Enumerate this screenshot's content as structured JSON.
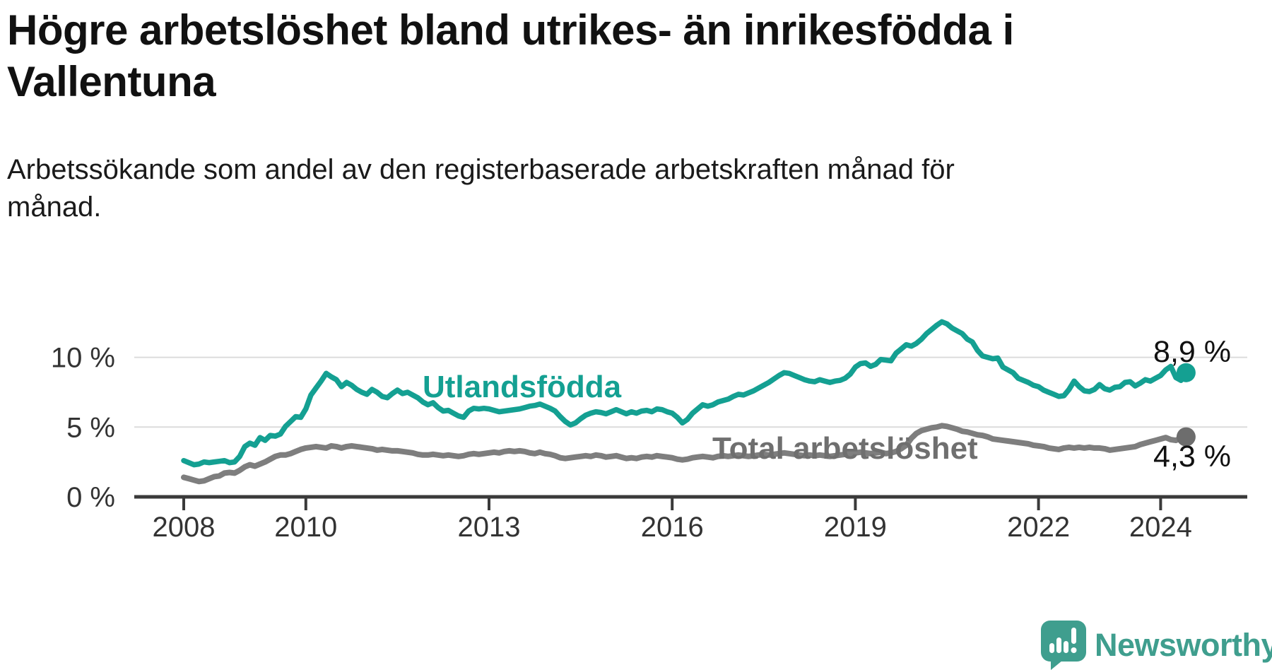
{
  "header": {
    "title_line1": "Högre arbetslöshet bland utrikes- än inrikesfödda i",
    "title_line2": "Vallentuna",
    "subtitle_line1": "Arbetssökande som andel av den registerbaserade arbetskraften månad för",
    "subtitle_line2": "månad."
  },
  "chart_data": {
    "type": "line",
    "title": "Högre arbetslöshet bland utrikes- än inrikesfödda i Vallentuna",
    "subtitle": "Arbetssökande som andel av den registerbaserade arbetskraften månad för månad.",
    "x_unit": "month",
    "x_start_year": 2008,
    "x_end": "2024-06",
    "ylim": [
      0,
      13.2
    ],
    "grid": "horizontal",
    "legend_position": "inline-labels",
    "x_ticks": [
      {
        "value": 2008,
        "label": "2008"
      },
      {
        "value": 2010,
        "label": "2010"
      },
      {
        "value": 2013,
        "label": "2013"
      },
      {
        "value": 2016,
        "label": "2016"
      },
      {
        "value": 2019,
        "label": "2019"
      },
      {
        "value": 2022,
        "label": "2022"
      },
      {
        "value": 2024,
        "label": "2024"
      }
    ],
    "y_ticks": [
      {
        "value": 0,
        "label": "0 %"
      },
      {
        "value": 5,
        "label": "5 %"
      },
      {
        "value": 10,
        "label": "10 %"
      }
    ],
    "series": [
      {
        "name": "Utlandsfödda",
        "label": "Utlandsfödda",
        "color": "#14a092",
        "end_value": 8.9,
        "end_label": "8,9 %",
        "values": [
          2.6,
          2.45,
          2.3,
          2.35,
          2.5,
          2.45,
          2.5,
          2.55,
          2.6,
          2.45,
          2.5,
          2.9,
          3.6,
          3.85,
          3.7,
          4.25,
          4.05,
          4.4,
          4.35,
          4.5,
          5.05,
          5.4,
          5.75,
          5.7,
          6.3,
          7.3,
          7.8,
          8.3,
          8.85,
          8.6,
          8.4,
          7.9,
          8.2,
          8.0,
          7.7,
          7.5,
          7.35,
          7.7,
          7.5,
          7.2,
          7.1,
          7.4,
          7.65,
          7.4,
          7.5,
          7.3,
          7.1,
          6.8,
          6.6,
          6.75,
          6.4,
          6.15,
          6.2,
          6.0,
          5.8,
          5.7,
          6.15,
          6.35,
          6.3,
          6.35,
          6.3,
          6.2,
          6.1,
          6.15,
          6.2,
          6.25,
          6.3,
          6.4,
          6.5,
          6.55,
          6.65,
          6.5,
          6.35,
          6.15,
          5.75,
          5.4,
          5.15,
          5.3,
          5.6,
          5.85,
          6.0,
          6.1,
          6.05,
          5.95,
          6.1,
          6.25,
          6.1,
          5.95,
          6.1,
          6.0,
          6.15,
          6.2,
          6.1,
          6.3,
          6.25,
          6.1,
          6.0,
          5.7,
          5.3,
          5.55,
          6.0,
          6.3,
          6.6,
          6.5,
          6.6,
          6.8,
          6.9,
          7.0,
          7.2,
          7.35,
          7.3,
          7.45,
          7.6,
          7.8,
          8.0,
          8.2,
          8.45,
          8.7,
          8.9,
          8.85,
          8.7,
          8.55,
          8.4,
          8.3,
          8.25,
          8.4,
          8.3,
          8.2,
          8.3,
          8.35,
          8.5,
          8.8,
          9.3,
          9.55,
          9.6,
          9.35,
          9.5,
          9.85,
          9.8,
          9.75,
          10.3,
          10.6,
          10.9,
          10.8,
          11.0,
          11.3,
          11.7,
          12.0,
          12.3,
          12.55,
          12.4,
          12.1,
          11.9,
          11.7,
          11.3,
          11.1,
          10.5,
          10.1,
          10.0,
          9.9,
          9.95,
          9.3,
          9.1,
          8.9,
          8.5,
          8.35,
          8.2,
          8.0,
          7.9,
          7.65,
          7.5,
          7.35,
          7.2,
          7.25,
          7.7,
          8.3,
          7.9,
          7.6,
          7.55,
          7.7,
          8.05,
          7.75,
          7.65,
          7.85,
          7.9,
          8.2,
          8.25,
          7.95,
          8.15,
          8.4,
          8.3,
          8.5,
          8.7,
          9.1,
          9.35,
          8.55,
          8.35,
          8.9
        ]
      },
      {
        "name": "Total arbetslöshet",
        "label": "Total arbetslöshet",
        "color": "#7e7e7e",
        "end_value": 4.3,
        "end_label": "4,3 %",
        "values": [
          1.4,
          1.3,
          1.2,
          1.1,
          1.15,
          1.3,
          1.45,
          1.5,
          1.7,
          1.75,
          1.7,
          1.9,
          2.15,
          2.3,
          2.2,
          2.35,
          2.5,
          2.7,
          2.9,
          3.0,
          3.0,
          3.1,
          3.25,
          3.4,
          3.5,
          3.55,
          3.6,
          3.55,
          3.5,
          3.65,
          3.6,
          3.5,
          3.6,
          3.65,
          3.6,
          3.55,
          3.5,
          3.45,
          3.35,
          3.4,
          3.35,
          3.3,
          3.3,
          3.25,
          3.2,
          3.15,
          3.05,
          3.0,
          3.0,
          3.05,
          3.0,
          2.95,
          3.0,
          2.95,
          2.9,
          2.95,
          3.05,
          3.1,
          3.05,
          3.1,
          3.15,
          3.2,
          3.15,
          3.25,
          3.3,
          3.25,
          3.3,
          3.25,
          3.15,
          3.1,
          3.2,
          3.1,
          3.05,
          2.95,
          2.8,
          2.75,
          2.8,
          2.85,
          2.9,
          2.95,
          2.9,
          3.0,
          2.95,
          2.85,
          2.9,
          2.95,
          2.85,
          2.75,
          2.8,
          2.75,
          2.85,
          2.9,
          2.85,
          2.95,
          2.9,
          2.85,
          2.8,
          2.7,
          2.65,
          2.7,
          2.8,
          2.85,
          2.9,
          2.85,
          2.8,
          2.9,
          2.95,
          2.9,
          2.95,
          3.0,
          2.95,
          2.9,
          2.95,
          3.0,
          3.05,
          3.0,
          3.05,
          3.1,
          3.15,
          3.1,
          3.05,
          3.0,
          2.95,
          3.0,
          2.95,
          3.0,
          2.95,
          2.9,
          2.95,
          3.0,
          3.05,
          3.1,
          3.15,
          3.2,
          3.15,
          3.1,
          3.15,
          3.2,
          3.1,
          3.15,
          3.25,
          3.45,
          3.7,
          4.2,
          4.55,
          4.75,
          4.85,
          4.95,
          5.0,
          5.1,
          5.05,
          4.95,
          4.85,
          4.7,
          4.65,
          4.55,
          4.45,
          4.4,
          4.3,
          4.15,
          4.1,
          4.05,
          4.0,
          3.95,
          3.9,
          3.85,
          3.8,
          3.7,
          3.65,
          3.6,
          3.5,
          3.45,
          3.4,
          3.5,
          3.55,
          3.5,
          3.55,
          3.5,
          3.55,
          3.5,
          3.5,
          3.45,
          3.35,
          3.4,
          3.45,
          3.5,
          3.55,
          3.6,
          3.75,
          3.85,
          3.95,
          4.05,
          4.15,
          4.25,
          4.1,
          4.05,
          4.2,
          4.3
        ]
      }
    ],
    "colors": {
      "grid": "#dcdcdc",
      "axis": "#3a3a3a",
      "tick_label": "#333333",
      "value_label": "#111111",
      "total_label": "#6f6f6f",
      "total_dot": "#6d6d6d"
    }
  },
  "branding": {
    "logo_text": "Newsworthy",
    "brand_color": "#3f9e8e",
    "logo_icon": "speech-bubble-bar-chart-exclamation"
  }
}
